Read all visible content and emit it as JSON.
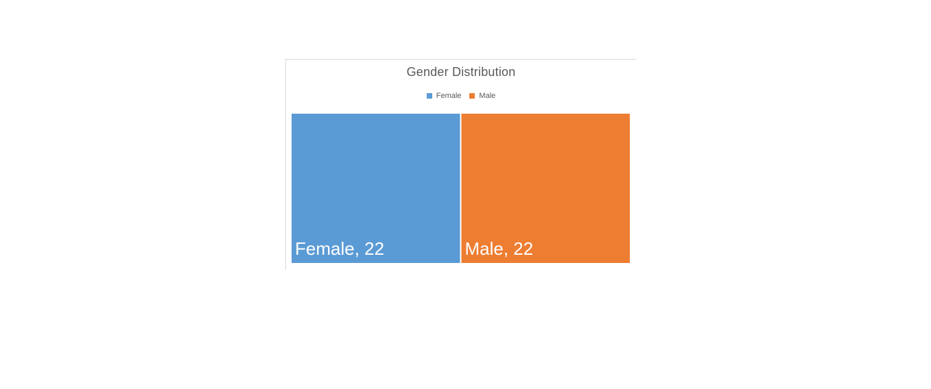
{
  "chart_data": {
    "type": "treemap",
    "title": "Gender Distribution",
    "categories": [
      "Female",
      "Male"
    ],
    "values": [
      22,
      22
    ],
    "colors": [
      "#5B9BD5",
      "#ED7D31"
    ],
    "data_labels": [
      "Female, 22",
      "Male, 22"
    ],
    "legend": {
      "placement": "top",
      "entries": [
        "Female",
        "Male"
      ]
    }
  }
}
